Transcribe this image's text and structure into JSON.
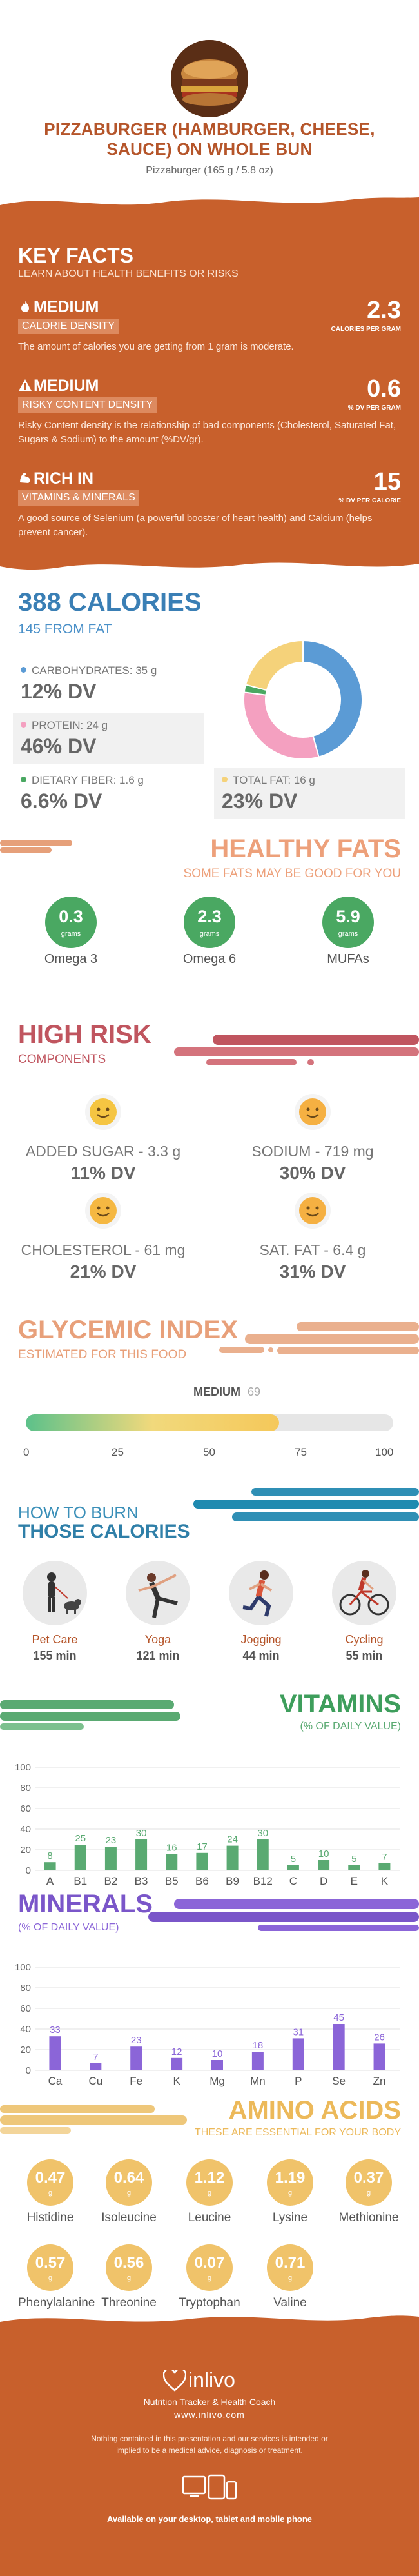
{
  "header": {
    "title": "PIZZABURGER (HAMBURGER, CHEESE, SAUCE) ON WHOLE BUN",
    "subtitle": "Pizzaburger (165 g / 5.8 oz)"
  },
  "key_facts": {
    "title": "KEY FACTS",
    "subtitle": "LEARN ABOUT HEALTH BENEFITS OR RISKS",
    "items": [
      {
        "level": "MEDIUM",
        "label": "CALORIE DENSITY",
        "value": "2.3",
        "unit": "CALORIES PER GRAM",
        "desc": "The amount of calories you are getting from 1 gram is moderate.",
        "icon": "flame-icon"
      },
      {
        "level": "MEDIUM",
        "label": "RISKY CONTENT DENSITY",
        "value": "0.6",
        "unit": "% DV PER GRAM",
        "desc": "Risky Content density is the relationship of bad components (Cholesterol, Saturated Fat, Sugars & Sodium) to the amount (%DV/gr).",
        "icon": "warning-icon"
      },
      {
        "level": "RICH IN",
        "label": "VITAMINS & MINERALS",
        "value": "15",
        "unit": "% DV PER CALORIE",
        "desc": "A good source of Selenium (a powerful booster of heart health) and Calcium (helps prevent cancer).",
        "icon": "muscle-icon"
      }
    ]
  },
  "calories": {
    "title": "388 CALORIES",
    "subtitle": "145 FROM FAT",
    "nutrients": [
      {
        "label": "CARBOHYDRATES: 35 g",
        "dv": "12% DV",
        "color": "#5b9bd5"
      },
      {
        "label": "PROTEIN: 24 g",
        "dv": "46% DV",
        "color": "#f4a0c0"
      },
      {
        "label": "DIETARY FIBER: 1.6 g",
        "dv": "6.6% DV",
        "color": "#4aa862"
      },
      {
        "label": "TOTAL FAT: 16 g",
        "dv": "23% DV",
        "color": "#f5d27a"
      }
    ],
    "donut": [
      {
        "name": "carbs",
        "value": 35,
        "color": "#5b9bd5"
      },
      {
        "name": "protein",
        "value": 24,
        "color": "#f4a0c0"
      },
      {
        "name": "fiber",
        "value": 1.6,
        "color": "#4aa862"
      },
      {
        "name": "fat",
        "value": 16,
        "color": "#f5d27a"
      }
    ]
  },
  "healthy_fats": {
    "title": "HEALTHY FATS",
    "subtitle": "SOME FATS MAY BE GOOD FOR YOU",
    "unit": "grams",
    "items": [
      {
        "value": "0.3",
        "name": "Omega 3"
      },
      {
        "value": "2.3",
        "name": "Omega 6"
      },
      {
        "value": "5.9",
        "name": "MUFAs"
      }
    ]
  },
  "high_risk": {
    "title": "HIGH RISK",
    "subtitle": "COMPONENTS",
    "items": [
      {
        "name": "ADDED SUGAR - 3.3 g",
        "dv": "11% DV"
      },
      {
        "name": "SODIUM - 719 mg",
        "dv": "30% DV"
      },
      {
        "name": "CHOLESTEROL - 61 mg",
        "dv": "21% DV"
      },
      {
        "name": "SAT. FAT - 6.4 g",
        "dv": "31% DV"
      }
    ]
  },
  "glycemic": {
    "title": "GLYCEMIC INDEX",
    "subtitle": "ESTIMATED FOR THIS FOOD",
    "level": "MEDIUM",
    "value": 69,
    "value_label": "69",
    "ticks": [
      "0",
      "25",
      "50",
      "75",
      "100"
    ]
  },
  "burn": {
    "title1": "HOW TO BURN",
    "title2": "THOSE CALORIES",
    "items": [
      {
        "name": "Pet Care",
        "min": "155 min",
        "icon": "dog-walking-icon"
      },
      {
        "name": "Yoga",
        "min": "121 min",
        "icon": "yoga-icon"
      },
      {
        "name": "Jogging",
        "min": "44 min",
        "icon": "jogging-icon"
      },
      {
        "name": "Cycling",
        "min": "55 min",
        "icon": "cycling-icon"
      }
    ]
  },
  "vitamins": {
    "title": "VITAMINS",
    "subtitle": "(% OF DAILY VALUE)"
  },
  "minerals": {
    "title": "MINERALS",
    "subtitle": "(% OF DAILY VALUE)"
  },
  "chart_data": [
    {
      "type": "bar",
      "title": "VITAMINS",
      "categories": [
        "A",
        "B1",
        "B2",
        "B3",
        "B5",
        "B6",
        "B9",
        "B12",
        "C",
        "D",
        "E",
        "K"
      ],
      "values": [
        8,
        25,
        23,
        30,
        16,
        17,
        24,
        30,
        5,
        10,
        5,
        7
      ],
      "ylim": [
        0,
        100
      ],
      "yticks": [
        "0",
        "20",
        "40",
        "60",
        "80",
        "100"
      ],
      "color": "#5aaa72"
    },
    {
      "type": "bar",
      "title": "MINERALS",
      "categories": [
        "Ca",
        "Cu",
        "Fe",
        "K",
        "Mg",
        "Mn",
        "P",
        "Se",
        "Zn"
      ],
      "values": [
        33,
        7,
        23,
        12,
        10,
        18,
        31,
        45,
        26
      ],
      "ylim": [
        0,
        100
      ],
      "yticks": [
        "0",
        "20",
        "40",
        "60",
        "80",
        "100"
      ],
      "color": "#8b65d8"
    }
  ],
  "amino": {
    "title": "AMINO ACIDS",
    "subtitle": "THESE ARE ESSENTIAL FOR YOUR BODY",
    "unit": "g",
    "items": [
      {
        "value": "0.47",
        "name": "Histidine"
      },
      {
        "value": "0.64",
        "name": "Isoleucine"
      },
      {
        "value": "1.12",
        "name": "Leucine"
      },
      {
        "value": "1.19",
        "name": "Lysine"
      },
      {
        "value": "0.37",
        "name": "Methionine"
      },
      {
        "value": "0.57",
        "name": "Phenylalanine"
      },
      {
        "value": "0.56",
        "name": "Threonine"
      },
      {
        "value": "0.07",
        "name": "Tryptophan"
      },
      {
        "value": "0.71",
        "name": "Valine"
      }
    ]
  },
  "footer": {
    "brand": "inlivo",
    "tagline": "Nutrition Tracker & Health Coach",
    "url": "www.inlivo.com",
    "disclaimer": "Nothing contained in this presentation and our services is intended or implied to be a medical advice, diagnosis or treatment.",
    "available": "Available on your desktop, tablet and mobile phone"
  }
}
